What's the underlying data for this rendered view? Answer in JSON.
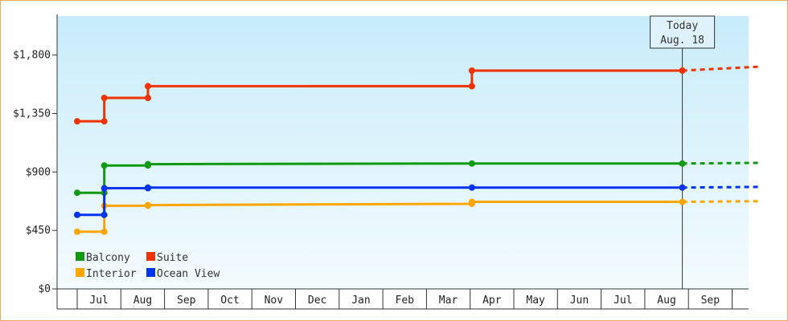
{
  "chart_data": {
    "type": "line",
    "step": true,
    "y_axis": {
      "ylim": [
        0,
        2100
      ],
      "ticks": [
        0,
        450,
        900,
        1350,
        1800
      ],
      "tick_labels": [
        "$0",
        "$450",
        "$900",
        "$1,350",
        "$1,800"
      ]
    },
    "x_axis": {
      "tick_labels": [
        "Jul",
        "Aug",
        "Sep",
        "Oct",
        "Nov",
        "Dec",
        "Jan",
        "Feb",
        "Mar",
        "Apr",
        "May",
        "Jun",
        "Jul",
        "Aug",
        "Sep"
      ]
    },
    "today_marker": {
      "line1": "Today",
      "line2": "Aug. 18"
    },
    "series": [
      {
        "name": "Balcony",
        "color": "#119911",
        "points": [
          [
            0.0,
            740
          ],
          [
            0.62,
            740
          ],
          [
            0.62,
            950
          ],
          [
            1.62,
            950
          ],
          [
            1.62,
            960
          ],
          [
            9.04,
            965
          ],
          [
            13.86,
            965
          ]
        ],
        "forecast": [
          [
            13.86,
            965
          ],
          [
            15.6,
            970
          ]
        ]
      },
      {
        "name": "Suite",
        "color": "#ee3300",
        "points": [
          [
            0.0,
            1290
          ],
          [
            0.62,
            1290
          ],
          [
            0.62,
            1470
          ],
          [
            1.62,
            1470
          ],
          [
            1.62,
            1560
          ],
          [
            9.04,
            1560
          ],
          [
            9.04,
            1680
          ],
          [
            13.86,
            1680
          ]
        ],
        "forecast": [
          [
            13.86,
            1680
          ],
          [
            15.6,
            1710
          ]
        ]
      },
      {
        "name": "Interior",
        "color": "#ffa500",
        "points": [
          [
            0.0,
            440
          ],
          [
            0.62,
            440
          ],
          [
            0.62,
            640
          ],
          [
            1.62,
            640
          ],
          [
            1.62,
            645
          ],
          [
            9.04,
            655
          ],
          [
            9.04,
            670
          ],
          [
            13.86,
            670
          ]
        ],
        "forecast": [
          [
            13.86,
            670
          ],
          [
            15.6,
            675
          ]
        ]
      },
      {
        "name": "Ocean View",
        "color": "#0033ee",
        "points": [
          [
            0.0,
            570
          ],
          [
            0.62,
            570
          ],
          [
            0.62,
            775
          ],
          [
            1.62,
            775
          ],
          [
            1.62,
            780
          ],
          [
            9.04,
            780
          ],
          [
            13.86,
            780
          ]
        ],
        "forecast": [
          [
            13.86,
            780
          ],
          [
            15.6,
            785
          ]
        ]
      }
    ],
    "legend": [
      "Balcony",
      "Suite",
      "Interior",
      "Ocean View"
    ],
    "legend_placement": "bottom-left"
  }
}
